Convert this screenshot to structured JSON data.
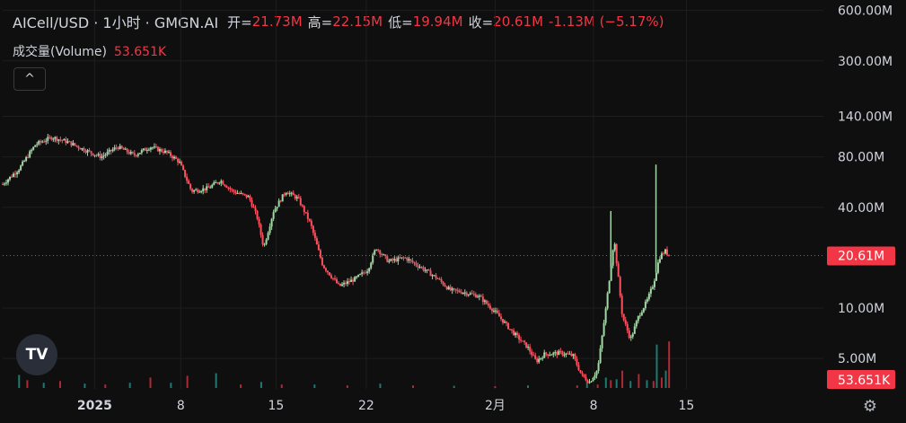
{
  "header": {
    "symbol": "AICell/USD · 1小时 · GMGN.AI",
    "open_label": "开=",
    "open_value": "21.73M",
    "high_label": "高=",
    "high_value": "22.15M",
    "low_label": "低=",
    "low_value": "19.94M",
    "close_label": "收=",
    "close_value": "20.61M",
    "change": "-1.13M (−5.17%)"
  },
  "volume_legend": {
    "label": "成交量(Volume)",
    "value": "53.651K"
  },
  "controls": {
    "collapse": "^",
    "logo": "TV",
    "settings": "⚙"
  },
  "colors": {
    "up": "#26a69a",
    "down": "#f23645",
    "candle_up": "#a5d6a7",
    "candle_down": "#f7525f",
    "background": "#0f0f0f"
  },
  "chart_data": {
    "type": "candlestick",
    "y_scale": "log",
    "ylim": [
      3500000,
      620000000
    ],
    "y_ticks": [
      {
        "label": "600.00M",
        "value": 600000000
      },
      {
        "label": "300.00M",
        "value": 300000000
      },
      {
        "label": "140.00M",
        "value": 140000000
      },
      {
        "label": "80.00M",
        "value": 80000000
      },
      {
        "label": "40.00M",
        "value": 40000000
      },
      {
        "label": "10.00M",
        "value": 10000000
      },
      {
        "label": "5.00M",
        "value": 5000000
      }
    ],
    "x_ticks": [
      {
        "label": "2025",
        "t": 0.112,
        "bold": true
      },
      {
        "label": "8",
        "t": 0.217
      },
      {
        "label": "15",
        "t": 0.333
      },
      {
        "label": "22",
        "t": 0.443
      },
      {
        "label": "2月",
        "t": 0.6
      },
      {
        "label": "8",
        "t": 0.72
      },
      {
        "label": "15",
        "t": 0.833
      }
    ],
    "last_price": {
      "label": "20.61M",
      "value": 20610000
    },
    "last_volume_label": "53.651K",
    "price_path": [
      [
        0.0,
        55000000
      ],
      [
        0.02,
        68000000
      ],
      [
        0.04,
        95000000
      ],
      [
        0.06,
        105000000
      ],
      [
        0.08,
        98000000
      ],
      [
        0.1,
        88000000
      ],
      [
        0.12,
        80000000
      ],
      [
        0.14,
        92000000
      ],
      [
        0.16,
        82000000
      ],
      [
        0.18,
        92000000
      ],
      [
        0.2,
        85000000
      ],
      [
        0.215,
        75000000
      ],
      [
        0.23,
        50000000
      ],
      [
        0.25,
        52000000
      ],
      [
        0.265,
        58000000
      ],
      [
        0.28,
        50000000
      ],
      [
        0.3,
        46000000
      ],
      [
        0.31,
        35000000
      ],
      [
        0.318,
        23000000
      ],
      [
        0.33,
        38000000
      ],
      [
        0.345,
        50000000
      ],
      [
        0.36,
        45000000
      ],
      [
        0.375,
        32000000
      ],
      [
        0.39,
        18000000
      ],
      [
        0.41,
        13500000
      ],
      [
        0.43,
        15000000
      ],
      [
        0.445,
        17000000
      ],
      [
        0.455,
        23000000
      ],
      [
        0.47,
        19000000
      ],
      [
        0.49,
        20000000
      ],
      [
        0.51,
        17500000
      ],
      [
        0.53,
        15000000
      ],
      [
        0.545,
        12800000
      ],
      [
        0.56,
        12500000
      ],
      [
        0.58,
        11800000
      ],
      [
        0.6,
        9500000
      ],
      [
        0.62,
        7300000
      ],
      [
        0.64,
        5800000
      ],
      [
        0.65,
        4800000
      ],
      [
        0.66,
        5300000
      ],
      [
        0.68,
        5400000
      ],
      [
        0.695,
        5200000
      ],
      [
        0.705,
        4000000
      ],
      [
        0.715,
        3600000
      ],
      [
        0.725,
        4300000
      ],
      [
        0.735,
        10000000
      ],
      [
        0.745,
        26000000
      ],
      [
        0.755,
        9000000
      ],
      [
        0.765,
        6500000
      ],
      [
        0.775,
        9000000
      ],
      [
        0.785,
        11000000
      ],
      [
        0.793,
        14000000
      ],
      [
        0.8,
        20000000
      ],
      [
        0.807,
        22000000
      ],
      [
        0.812,
        20610000
      ]
    ],
    "spikes": [
      {
        "t": 0.741,
        "high": 38000000
      },
      {
        "t": 0.796,
        "high": 72000000
      }
    ],
    "volume": {
      "max_value": 60000,
      "bars": [
        {
          "t": 0.02,
          "v": 15000
        },
        {
          "t": 0.03,
          "v": 9000
        },
        {
          "t": 0.05,
          "v": 6000
        },
        {
          "t": 0.07,
          "v": 8000
        },
        {
          "t": 0.1,
          "v": 5000
        },
        {
          "t": 0.125,
          "v": 4000
        },
        {
          "t": 0.155,
          "v": 6000
        },
        {
          "t": 0.18,
          "v": 12000
        },
        {
          "t": 0.205,
          "v": 6000
        },
        {
          "t": 0.225,
          "v": 14000
        },
        {
          "t": 0.26,
          "v": 17000
        },
        {
          "t": 0.29,
          "v": 4000
        },
        {
          "t": 0.315,
          "v": 7000
        },
        {
          "t": 0.34,
          "v": 4000
        },
        {
          "t": 0.38,
          "v": 4000
        },
        {
          "t": 0.42,
          "v": 3000
        },
        {
          "t": 0.46,
          "v": 5000
        },
        {
          "t": 0.5,
          "v": 3000
        },
        {
          "t": 0.55,
          "v": 2500
        },
        {
          "t": 0.6,
          "v": 2000
        },
        {
          "t": 0.64,
          "v": 3000
        },
        {
          "t": 0.7,
          "v": 3000
        },
        {
          "t": 0.712,
          "v": 7000
        },
        {
          "t": 0.725,
          "v": 4000
        },
        {
          "t": 0.735,
          "v": 12000
        },
        {
          "t": 0.741,
          "v": 9000
        },
        {
          "t": 0.748,
          "v": 10000
        },
        {
          "t": 0.755,
          "v": 20000
        },
        {
          "t": 0.765,
          "v": 8000
        },
        {
          "t": 0.775,
          "v": 16000
        },
        {
          "t": 0.785,
          "v": 9000
        },
        {
          "t": 0.793,
          "v": 8000
        },
        {
          "t": 0.797,
          "v": 50000
        },
        {
          "t": 0.803,
          "v": 12000
        },
        {
          "t": 0.808,
          "v": 20000
        },
        {
          "t": 0.812,
          "v": 53651
        }
      ]
    }
  }
}
